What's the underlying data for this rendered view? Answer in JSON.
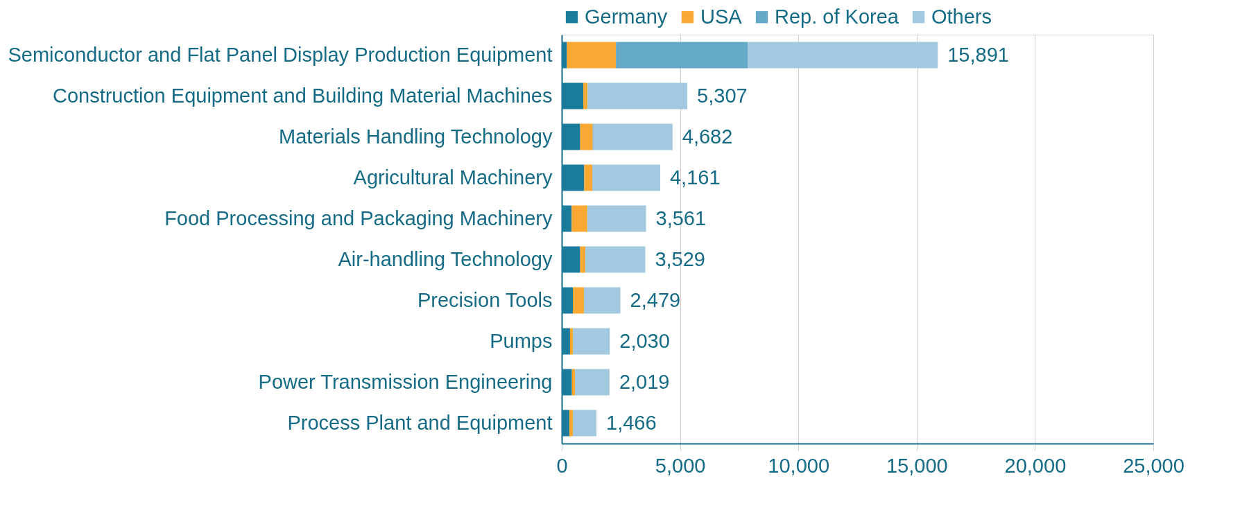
{
  "chart_data": {
    "type": "bar",
    "orientation": "horizontal",
    "stacked": true,
    "categories": [
      "Semiconductor and Flat Panel Display Production Equipment",
      "Construction Equipment and Building Material Machines",
      "Materials Handling Technology",
      "Agricultural Machinery",
      "Food Processing and Packaging Machinery",
      "Air-handling Technology",
      "Precision Tools",
      "Pumps",
      "Power Transmission Engineering",
      "Process Plant and Equipment"
    ],
    "series": [
      {
        "name": "Germany",
        "color": "#1b7b9b",
        "values": [
          220,
          910,
          780,
          950,
          420,
          780,
          470,
          350,
          430,
          320
        ]
      },
      {
        "name": "USA",
        "color": "#f9a834",
        "values": [
          2070,
          180,
          530,
          340,
          660,
          220,
          470,
          120,
          130,
          150
        ]
      },
      {
        "name": "Rep. of Korea",
        "color": "#64a9c8",
        "values": [
          5570,
          0,
          30,
          0,
          0,
          0,
          0,
          0,
          0,
          0
        ]
      },
      {
        "name": "Others",
        "color": "#a2c9df",
        "values": [
          8031,
          4217,
          3342,
          2871,
          2481,
          2529,
          1539,
          1560,
          1459,
          996
        ]
      }
    ],
    "totals": [
      "15,891",
      "5,307",
      "4,682",
      "4,161",
      "3,561",
      "3,529",
      "2,479",
      "2,030",
      "2,019",
      "1,466"
    ],
    "xlim": [
      0,
      25000
    ],
    "xticks": [
      {
        "value": 0,
        "label": "0"
      },
      {
        "value": 5000,
        "label": "5,000"
      },
      {
        "value": 10000,
        "label": "10,000"
      },
      {
        "value": 15000,
        "label": "15,000"
      },
      {
        "value": 20000,
        "label": "20,000"
      },
      {
        "value": 25000,
        "label": "25,000"
      }
    ],
    "grid": "x",
    "legend": "top"
  }
}
